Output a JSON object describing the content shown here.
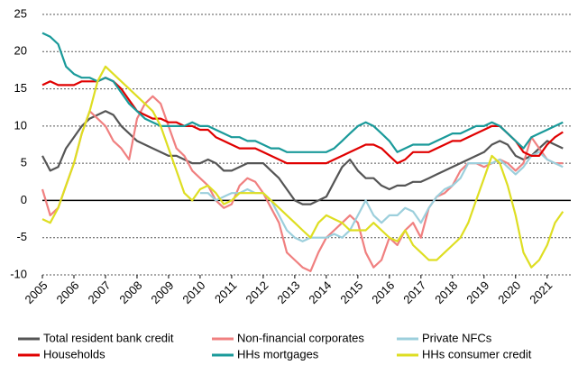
{
  "chart_data": {
    "type": "line",
    "x": [
      2005,
      2005.25,
      2005.5,
      2005.75,
      2006,
      2006.25,
      2006.5,
      2006.75,
      2007,
      2007.25,
      2007.5,
      2007.75,
      2008,
      2008.25,
      2008.5,
      2008.75,
      2009,
      2009.25,
      2009.5,
      2009.75,
      2010,
      2010.25,
      2010.5,
      2010.75,
      2011,
      2011.25,
      2011.5,
      2011.75,
      2012,
      2012.25,
      2012.5,
      2012.75,
      2013,
      2013.25,
      2013.5,
      2013.75,
      2014,
      2014.25,
      2014.5,
      2014.75,
      2015,
      2015.25,
      2015.5,
      2015.75,
      2016,
      2016.25,
      2016.5,
      2016.75,
      2017,
      2017.25,
      2017.5,
      2017.75,
      2018,
      2018.25,
      2018.5,
      2018.75,
      2019,
      2019.25,
      2019.5,
      2019.75,
      2020,
      2020.25,
      2020.5,
      2020.75,
      2021,
      2021.25,
      2021.5
    ],
    "xlim": [
      2005,
      2021.75
    ],
    "xticks": [
      2005,
      2006,
      2007,
      2008,
      2009,
      2010,
      2011,
      2012,
      2013,
      2014,
      2015,
      2016,
      2017,
      2018,
      2019,
      2020,
      2021
    ],
    "ylim": [
      -10,
      25
    ],
    "yticks": [
      -10,
      -5,
      0,
      5,
      10,
      15,
      20,
      25
    ],
    "grid": true,
    "series": [
      {
        "name": "Total resident bank credit",
        "color": "#555555",
        "values": [
          6,
          4,
          4.5,
          7,
          8.5,
          10,
          11,
          11.5,
          12,
          11.5,
          10,
          9,
          8,
          7.5,
          7,
          6.5,
          6,
          6,
          5.5,
          5,
          5,
          5.5,
          5,
          4,
          4,
          4.5,
          5,
          5,
          5,
          4,
          3,
          1.5,
          0,
          -0.5,
          -0.5,
          0,
          0.5,
          2.5,
          4.5,
          5.5,
          4,
          3,
          3,
          2,
          1.5,
          2,
          2,
          2.5,
          2.5,
          3,
          3.5,
          4,
          4.5,
          5,
          5.5,
          6,
          6.5,
          7.5,
          8,
          7.5,
          6,
          5.5,
          6,
          7,
          8,
          7.5,
          7
        ]
      },
      {
        "name": "Non-financial corporates",
        "color": "#f08080",
        "values": [
          1.5,
          -2,
          -1,
          2,
          5,
          9,
          12,
          11,
          10,
          8,
          7,
          5.5,
          11,
          13,
          14,
          13,
          10,
          7,
          6,
          4,
          3,
          2,
          0,
          -1,
          -0.5,
          2,
          3,
          2.5,
          1,
          -1,
          -3,
          -7,
          -8,
          -9,
          -9.5,
          -7,
          -5,
          -4,
          -3,
          -2,
          -3,
          -7,
          -9,
          -8,
          -5,
          -6,
          -4,
          -3,
          -5,
          -1,
          0.5,
          1,
          2,
          4,
          5,
          5,
          4.5,
          5,
          5.5,
          5,
          4,
          5,
          8.5,
          7,
          5.5,
          5,
          5
        ]
      },
      {
        "name": "Private NFCs",
        "color": "#9ccfdc",
        "values": [
          null,
          null,
          null,
          null,
          null,
          null,
          null,
          null,
          null,
          null,
          null,
          null,
          null,
          null,
          null,
          null,
          null,
          null,
          null,
          null,
          1,
          1,
          0,
          0.5,
          1,
          1,
          1.5,
          1,
          1,
          0,
          -2,
          -4,
          -5,
          -5.5,
          -5,
          -5,
          -5,
          -4.5,
          -5,
          -4,
          -2,
          0,
          -2,
          -3,
          -2,
          -2,
          -1,
          -1.5,
          -3,
          -1,
          0.5,
          1.5,
          2,
          3,
          5,
          5,
          5,
          5,
          5.5,
          4.5,
          3.5,
          4.5,
          6,
          6.5,
          5.5,
          5,
          4.5
        ]
      },
      {
        "name": "Households",
        "color": "#e00000",
        "values": [
          15.5,
          16,
          15.5,
          15.5,
          15.5,
          16,
          16,
          16,
          16.5,
          16,
          15,
          13.5,
          12,
          11.5,
          11,
          11,
          10.5,
          10.5,
          10,
          10,
          9.5,
          9.5,
          8.5,
          8,
          7.5,
          7,
          7,
          7,
          6.5,
          6,
          5.5,
          5,
          5,
          5,
          5,
          5,
          5,
          5.5,
          6,
          6.5,
          7,
          7.5,
          7.5,
          7,
          6,
          5,
          5.5,
          6.5,
          6.5,
          6.5,
          7,
          7.5,
          8,
          8,
          8.5,
          9,
          9.5,
          10,
          10,
          9,
          8,
          6.5,
          6,
          6,
          7.5,
          8.5,
          9.2
        ]
      },
      {
        "name": "HHs mortgages",
        "color": "#1a9a9a",
        "values": [
          22.5,
          22,
          21,
          18,
          17,
          16.5,
          16.5,
          16,
          16.5,
          16,
          14.5,
          13,
          12,
          11,
          10.5,
          10,
          10,
          10,
          10,
          10.5,
          10,
          10,
          9.5,
          9,
          8.5,
          8.5,
          8,
          8,
          7.5,
          7,
          7,
          6.5,
          6.5,
          6.5,
          6.5,
          6.5,
          6.5,
          7,
          8,
          9,
          10,
          10.5,
          10,
          9,
          8,
          6.5,
          7,
          7.5,
          7.5,
          7.5,
          8,
          8.5,
          9,
          9,
          9.5,
          10,
          10,
          10.5,
          10,
          9,
          8,
          7,
          8.5,
          9,
          9.5,
          10,
          10.5
        ]
      },
      {
        "name": "HHs consumer credit",
        "color": "#dede22",
        "values": [
          -2.5,
          -3,
          -1,
          2,
          5,
          9,
          12,
          16,
          18,
          17,
          16,
          15,
          14,
          13,
          12,
          10,
          7,
          4,
          1,
          0,
          1.5,
          2,
          1,
          -0.5,
          0,
          1,
          1,
          1,
          1,
          0,
          -1,
          -2,
          -3,
          -4,
          -5,
          -3,
          -2,
          -2.5,
          -3,
          -4,
          -4,
          -4,
          -3,
          -4,
          -5,
          -5.5,
          -4,
          -6,
          -7,
          -8,
          -8,
          -7,
          -6,
          -5,
          -3,
          0,
          3,
          6,
          5,
          2,
          -2,
          -7,
          -9,
          -8,
          -6,
          -3,
          -1.5
        ]
      }
    ]
  }
}
